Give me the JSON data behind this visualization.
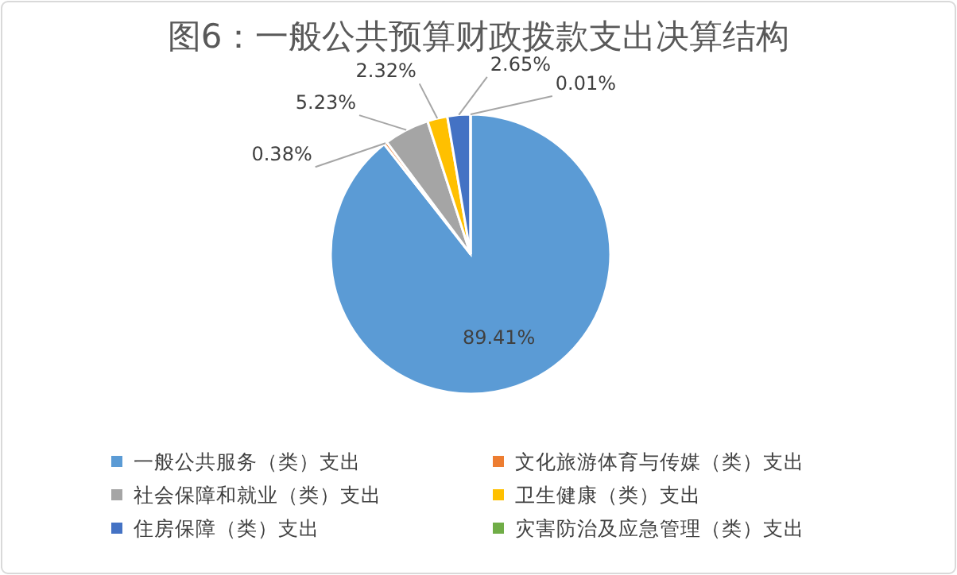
{
  "chart_data": {
    "type": "pie",
    "title": "图6：一般公共预算财政拨款支出决算结构",
    "categories": [
      "一般公共服务（类）支出",
      "文化旅游体育与传媒（类）支出",
      "社会保障和就业（类）支出",
      "卫生健康（类）支出",
      "住房保障（类）支出",
      "灾害防治及应急管理（类）支出"
    ],
    "values": [
      89.41,
      0.38,
      5.23,
      2.32,
      2.65,
      0.01
    ],
    "value_labels": [
      "89.41%",
      "0.38%",
      "5.23%",
      "2.32%",
      "2.65%",
      "0.01%"
    ],
    "colors": [
      "#5b9bd5",
      "#ed7d31",
      "#a5a5a5",
      "#ffc000",
      "#4472c4",
      "#70ad47"
    ],
    "legend": "bottom"
  }
}
